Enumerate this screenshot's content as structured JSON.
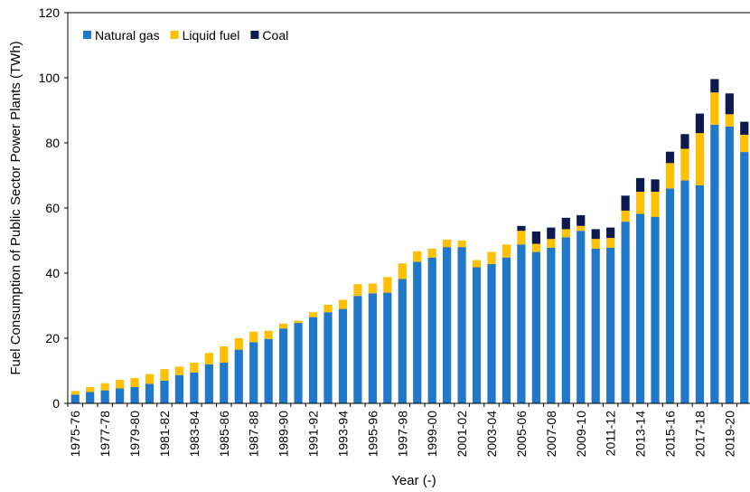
{
  "chart_data": {
    "type": "stacked_bar",
    "x_label": "Year (-)",
    "y_label": "Fuel Consumption of Public Sector Power Plants (TWh)",
    "categories": [
      "1975-76",
      null,
      "1977-78",
      null,
      "1979-80",
      null,
      "1981-82",
      null,
      "1983-84",
      null,
      "1985-86",
      null,
      "1987-88",
      null,
      "1989-90",
      null,
      "1991-92",
      null,
      "1993-94",
      null,
      "1995-96",
      null,
      "1997-98",
      null,
      "1999-00",
      null,
      "2001-02",
      null,
      "2003-04",
      null,
      "2005-06",
      null,
      "2007-08",
      null,
      "2009-10",
      null,
      "2011-12",
      null,
      "2013-14",
      null,
      "2015-16",
      null,
      "2017-18",
      null,
      "2019-20",
      null
    ],
    "series": [
      {
        "name": "Natural gas",
        "color": "#1f78c8",
        "values": [
          2.7,
          3.5,
          4,
          4.6,
          5,
          6,
          7,
          8.7,
          9.5,
          12,
          12.5,
          16.5,
          18.8,
          19.8,
          23,
          24.7,
          26.5,
          28,
          29,
          33,
          33.8,
          34,
          38.2,
          43.5,
          44.8,
          48,
          48,
          41.8,
          42.8,
          44.8,
          48.8,
          46.5,
          47.8,
          51,
          53,
          47.5,
          47.8,
          55.8,
          58.2,
          57.3,
          66,
          68.5,
          67,
          85.6,
          85,
          77.2
        ]
      },
      {
        "name": "Liquid fuel",
        "color": "#ffc000",
        "values": [
          1.1,
          1.5,
          2.2,
          2.6,
          2.8,
          3,
          3.5,
          2.6,
          3,
          3.5,
          5,
          3.5,
          3.2,
          2.5,
          1.5,
          0.7,
          1.5,
          2.3,
          2.8,
          3.6,
          3,
          4.8,
          4.8,
          3.2,
          2.7,
          2.3,
          2,
          2.2,
          3.7,
          4,
          4.2,
          2.5,
          2.7,
          2.5,
          1.5,
          3,
          3,
          3.4,
          6.8,
          7.7,
          7.8,
          9.7,
          16,
          9.9,
          3.8,
          5.3
        ]
      },
      {
        "name": "Coal",
        "color": "#0d1a4f",
        "values": [
          0,
          0,
          0,
          0,
          0,
          0,
          0,
          0,
          0,
          0,
          0,
          0,
          0,
          0,
          0,
          0,
          0,
          0,
          0,
          0,
          0,
          0,
          0,
          0,
          0,
          0,
          0,
          0,
          0,
          0,
          1.5,
          3.8,
          3.5,
          3.5,
          3.3,
          3,
          3.2,
          4.6,
          4.2,
          3.8,
          3.5,
          4.5,
          6,
          4.1,
          6.4,
          4
        ]
      }
    ],
    "ylim": [
      0,
      120
    ],
    "yticks": [
      0,
      20,
      40,
      60,
      80,
      100,
      120
    ],
    "legend": "top-left"
  }
}
